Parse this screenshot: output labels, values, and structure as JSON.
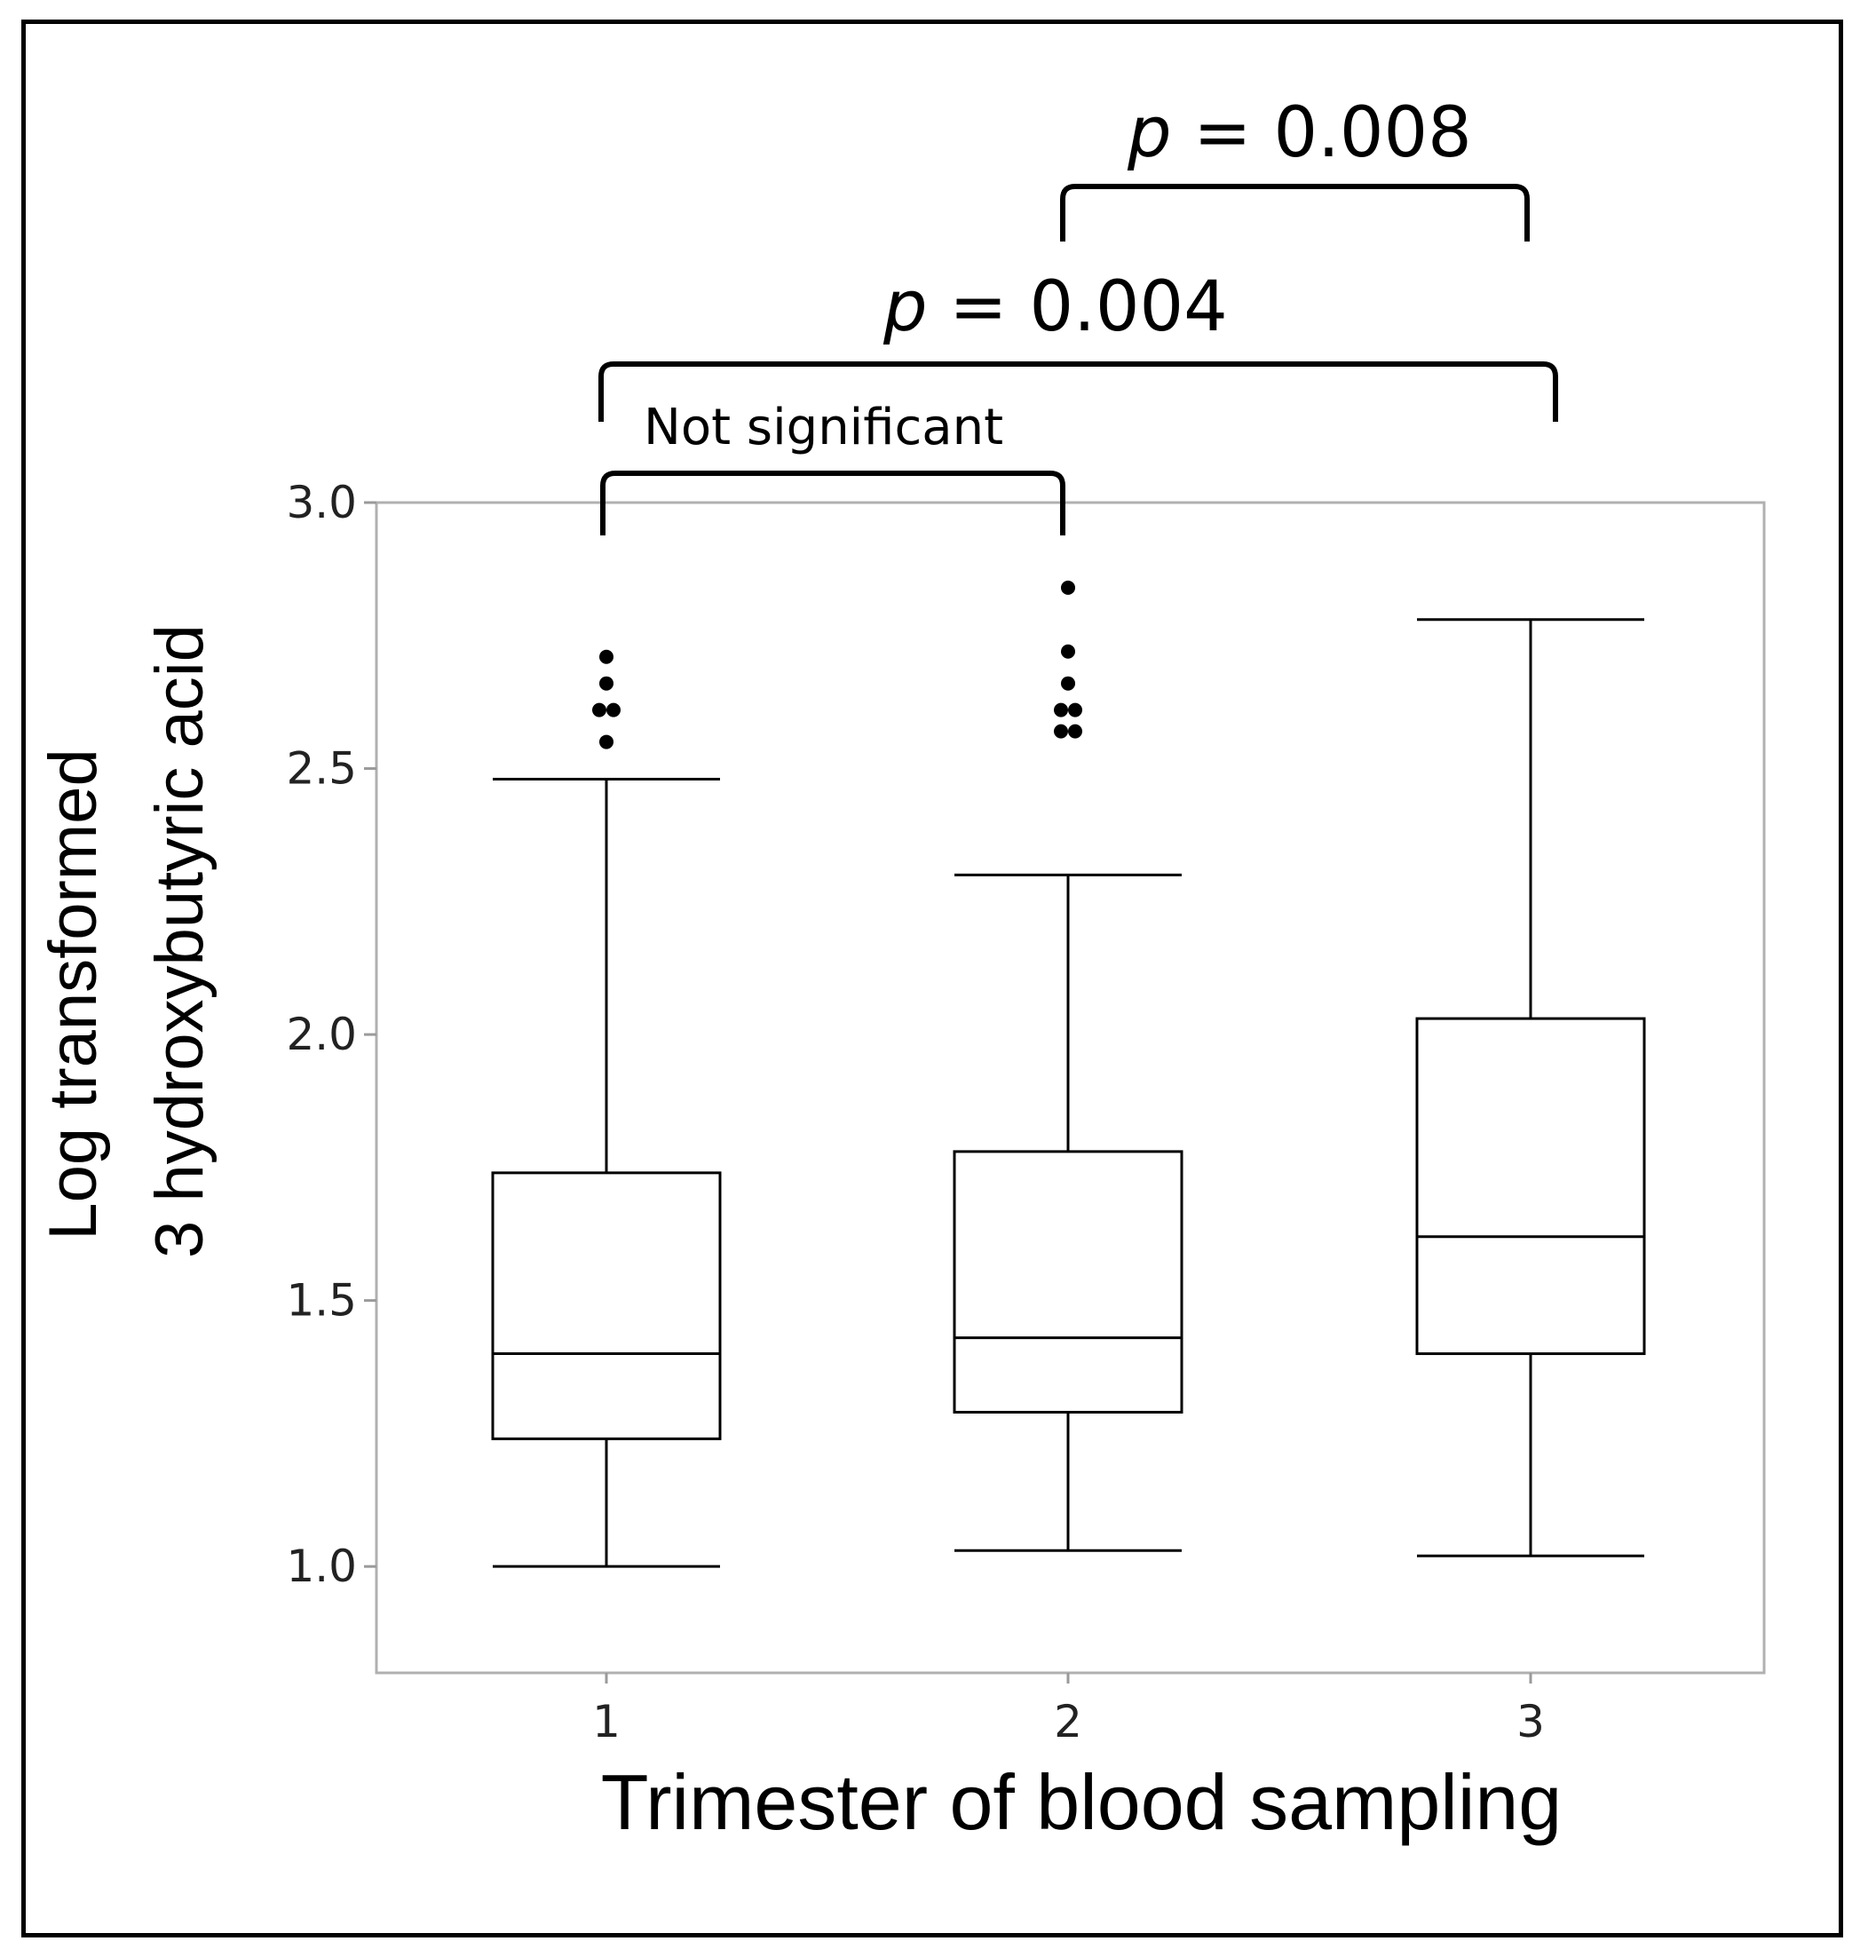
{
  "chart_data": {
    "type": "box",
    "xlabel": "Trimester of blood sampling",
    "ylabel_lines": [
      "Log transformed",
      "3 hydroxybutyric acid"
    ],
    "ylim": [
      0.8,
      3.0
    ],
    "yticks": [
      "1.0",
      "1.5",
      "2.0",
      "2.5",
      "3.0"
    ],
    "ytick_values": [
      1.0,
      1.5,
      2.0,
      2.5,
      3.0
    ],
    "categories": [
      "1",
      "2",
      "3"
    ],
    "boxes": [
      {
        "category": "1",
        "whisker_low": 1.0,
        "q1": 1.24,
        "median": 1.4,
        "q3": 1.74,
        "whisker_high": 2.48,
        "outliers": [
          2.55,
          2.61,
          2.61,
          2.66,
          2.71
        ]
      },
      {
        "category": "2",
        "whisker_low": 1.03,
        "q1": 1.29,
        "median": 1.43,
        "q3": 1.78,
        "whisker_high": 2.3,
        "outliers": [
          2.57,
          2.57,
          2.61,
          2.61,
          2.66,
          2.72,
          2.84
        ]
      },
      {
        "category": "3",
        "whisker_low": 1.02,
        "q1": 1.4,
        "median": 1.62,
        "q3": 2.03,
        "whisker_high": 2.78,
        "outliers": []
      }
    ],
    "grid": false,
    "annotations": [
      {
        "from": "1",
        "to": "2",
        "text": "Not significant"
      },
      {
        "from": "1",
        "to": "3",
        "p_symbol": "p",
        "text": " = 0.004"
      },
      {
        "from": "2",
        "to": "3",
        "p_symbol": "p",
        "text": " = 0.008"
      }
    ]
  }
}
